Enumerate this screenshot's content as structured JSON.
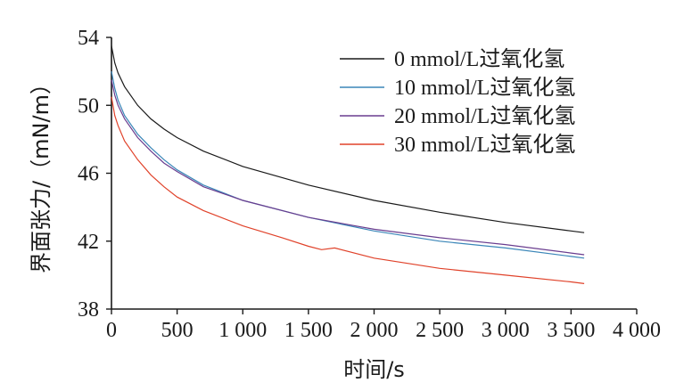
{
  "chart_data": {
    "type": "line",
    "title": "",
    "xlabel": "时间/s",
    "ylabel": "界面张力/（mN/m）",
    "xlim": [
      0,
      4000
    ],
    "ylim": [
      38,
      54
    ],
    "xticks": [
      0,
      500,
      1000,
      1500,
      2000,
      2500,
      3000,
      3500,
      4000
    ],
    "xtick_labels": [
      "0",
      "500",
      "1 000",
      "1 500",
      "2 000",
      "2 500",
      "3 000",
      "3 500",
      "4 000"
    ],
    "yticks": [
      38,
      42,
      46,
      50,
      54
    ],
    "ytick_labels": [
      "38",
      "42",
      "46",
      "50",
      "54"
    ],
    "grid": false,
    "legend_position": "top-right",
    "series": [
      {
        "name": "0 mmol/L过氧化氢",
        "color": "#1a1a1a",
        "points": [
          [
            0,
            53.5
          ],
          [
            25,
            52.5
          ],
          [
            50,
            51.9
          ],
          [
            100,
            51.1
          ],
          [
            200,
            50.0
          ],
          [
            300,
            49.2
          ],
          [
            400,
            48.6
          ],
          [
            500,
            48.1
          ],
          [
            700,
            47.3
          ],
          [
            1000,
            46.4
          ],
          [
            1500,
            45.3
          ],
          [
            2000,
            44.4
          ],
          [
            2500,
            43.7
          ],
          [
            3000,
            43.1
          ],
          [
            3500,
            42.6
          ],
          [
            3600,
            42.5
          ]
        ]
      },
      {
        "name": "10 mmol/L过氧化氢",
        "color": "#3a86b8",
        "points": [
          [
            0,
            52.0
          ],
          [
            25,
            51.0
          ],
          [
            50,
            50.3
          ],
          [
            100,
            49.4
          ],
          [
            200,
            48.3
          ],
          [
            300,
            47.5
          ],
          [
            400,
            46.8
          ],
          [
            500,
            46.2
          ],
          [
            700,
            45.3
          ],
          [
            1000,
            44.4
          ],
          [
            1500,
            43.4
          ],
          [
            2000,
            42.6
          ],
          [
            2500,
            42.0
          ],
          [
            3000,
            41.6
          ],
          [
            3500,
            41.1
          ],
          [
            3600,
            41.0
          ]
        ]
      },
      {
        "name": "20 mmol/L过氧化氢",
        "color": "#6a3d8f",
        "points": [
          [
            0,
            51.5
          ],
          [
            25,
            50.6
          ],
          [
            50,
            50.0
          ],
          [
            100,
            49.2
          ],
          [
            200,
            48.1
          ],
          [
            300,
            47.3
          ],
          [
            400,
            46.6
          ],
          [
            500,
            46.1
          ],
          [
            700,
            45.2
          ],
          [
            1000,
            44.4
          ],
          [
            1500,
            43.4
          ],
          [
            2000,
            42.7
          ],
          [
            2500,
            42.2
          ],
          [
            3000,
            41.8
          ],
          [
            3500,
            41.3
          ],
          [
            3600,
            41.2
          ]
        ]
      },
      {
        "name": "30 mmol/L过氧化氢",
        "color": "#e0422a",
        "points": [
          [
            0,
            50.5
          ],
          [
            25,
            49.4
          ],
          [
            50,
            48.8
          ],
          [
            100,
            47.9
          ],
          [
            200,
            46.8
          ],
          [
            300,
            45.9
          ],
          [
            400,
            45.2
          ],
          [
            500,
            44.6
          ],
          [
            700,
            43.8
          ],
          [
            1000,
            42.9
          ],
          [
            1300,
            42.2
          ],
          [
            1500,
            41.7
          ],
          [
            1600,
            41.5
          ],
          [
            1700,
            41.6
          ],
          [
            2000,
            41.0
          ],
          [
            2500,
            40.4
          ],
          [
            3000,
            40.0
          ],
          [
            3500,
            39.6
          ],
          [
            3600,
            39.5
          ]
        ]
      }
    ]
  }
}
